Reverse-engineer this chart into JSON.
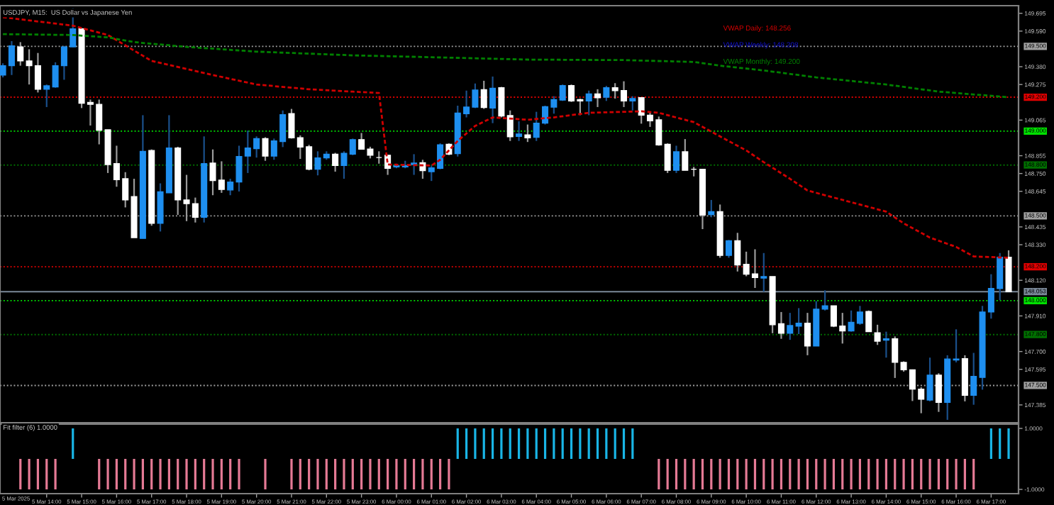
{
  "chart_data": [
    {
      "type": "candlestick",
      "title": "USDJPY, M15:  US Dollar vs Japanese Yen",
      "x": [
        "2025-03-05T12:45",
        "2025-03-05T13:00",
        "2025-03-05T13:15",
        "2025-03-05T13:30",
        "2025-03-05T13:45",
        "2025-03-05T14:00",
        "2025-03-05T14:15",
        "2025-03-05T14:30",
        "2025-03-05T14:45",
        "2025-03-05T15:00",
        "2025-03-05T15:15",
        "2025-03-05T15:30",
        "2025-03-05T15:45",
        "2025-03-05T16:00",
        "2025-03-05T16:15",
        "2025-03-05T16:30",
        "2025-03-05T16:45",
        "2025-03-05T17:00",
        "2025-03-05T17:15",
        "2025-03-05T17:30",
        "2025-03-05T17:45",
        "2025-03-05T18:00",
        "2025-03-05T18:15",
        "2025-03-05T18:30",
        "2025-03-05T18:45",
        "2025-03-05T19:00",
        "2025-03-05T19:15",
        "2025-03-05T19:30",
        "2025-03-05T19:45",
        "2025-03-05T20:00",
        "2025-03-05T20:15",
        "2025-03-05T20:30",
        "2025-03-05T20:45",
        "2025-03-05T21:00",
        "2025-03-05T21:15",
        "2025-03-05T21:30",
        "2025-03-05T21:45",
        "2025-03-05T22:00",
        "2025-03-05T22:15",
        "2025-03-05T22:30",
        "2025-03-05T22:45",
        "2025-03-05T23:00",
        "2025-03-05T23:15",
        "2025-03-05T23:30",
        "2025-03-05T23:45",
        "2025-03-06T00:00",
        "2025-03-06T00:15",
        "2025-03-06T00:30",
        "2025-03-06T00:45",
        "2025-03-06T01:00",
        "2025-03-06T01:15",
        "2025-03-06T01:30",
        "2025-03-06T01:45",
        "2025-03-06T02:00",
        "2025-03-06T02:15",
        "2025-03-06T02:30",
        "2025-03-06T02:45",
        "2025-03-06T03:00",
        "2025-03-06T03:15",
        "2025-03-06T03:30",
        "2025-03-06T03:45",
        "2025-03-06T04:00",
        "2025-03-06T04:15",
        "2025-03-06T04:30",
        "2025-03-06T04:45",
        "2025-03-06T05:00",
        "2025-03-06T05:15",
        "2025-03-06T05:30",
        "2025-03-06T05:45",
        "2025-03-06T06:00",
        "2025-03-06T06:15",
        "2025-03-06T06:30",
        "2025-03-06T06:45",
        "2025-03-06T07:00",
        "2025-03-06T07:15",
        "2025-03-06T07:30",
        "2025-03-06T07:45",
        "2025-03-06T08:00",
        "2025-03-06T08:15",
        "2025-03-06T08:30",
        "2025-03-06T08:45",
        "2025-03-06T09:00",
        "2025-03-06T09:15",
        "2025-03-06T09:30",
        "2025-03-06T09:45",
        "2025-03-06T10:00",
        "2025-03-06T10:15",
        "2025-03-06T10:30",
        "2025-03-06T10:45",
        "2025-03-06T11:00",
        "2025-03-06T11:15",
        "2025-03-06T11:30",
        "2025-03-06T11:45",
        "2025-03-06T12:00",
        "2025-03-06T12:15",
        "2025-03-06T12:30",
        "2025-03-06T12:45",
        "2025-03-06T13:00",
        "2025-03-06T13:15",
        "2025-03-06T13:30",
        "2025-03-06T13:45",
        "2025-03-06T14:00",
        "2025-03-06T14:15",
        "2025-03-06T14:30",
        "2025-03-06T14:45",
        "2025-03-06T15:00",
        "2025-03-06T15:15",
        "2025-03-06T15:30",
        "2025-03-06T15:45",
        "2025-03-06T16:00",
        "2025-03-06T16:15",
        "2025-03-06T16:30",
        "2025-03-06T16:45",
        "2025-03-06T17:00",
        "2025-03-06T17:15",
        "2025-03-06T17:30"
      ],
      "ohlc": [
        [
          149.331,
          149.4,
          149.317,
          149.386
        ],
        [
          149.386,
          149.531,
          149.331,
          149.503
        ],
        [
          149.497,
          149.525,
          149.386,
          149.414
        ],
        [
          149.414,
          149.483,
          149.275,
          149.386
        ],
        [
          149.386,
          149.461,
          149.228,
          149.247
        ],
        [
          149.247,
          149.275,
          149.142,
          149.267
        ],
        [
          149.261,
          149.406,
          149.256,
          149.386
        ],
        [
          149.386,
          149.503,
          149.303,
          149.497
        ],
        [
          149.497,
          149.725,
          149.497,
          149.603
        ],
        [
          149.603,
          149.608,
          149.136,
          149.164
        ],
        [
          149.169,
          149.186,
          149.033,
          149.158
        ],
        [
          149.158,
          149.186,
          148.922,
          149.006
        ],
        [
          149.008,
          149.008,
          148.753,
          148.803
        ],
        [
          148.808,
          148.914,
          148.672,
          148.714
        ],
        [
          148.719,
          148.758,
          148.55,
          148.594
        ],
        [
          148.614,
          148.719,
          148.372,
          148.372
        ],
        [
          148.367,
          149.094,
          148.367,
          148.881
        ],
        [
          148.886,
          148.892,
          148.442,
          148.456
        ],
        [
          148.456,
          148.692,
          148.408,
          148.642
        ],
        [
          148.636,
          149.094,
          148.636,
          148.9
        ],
        [
          148.9,
          148.908,
          148.506,
          148.594
        ],
        [
          148.594,
          148.742,
          148.469,
          148.572
        ],
        [
          148.572,
          148.608,
          148.461,
          148.492
        ],
        [
          148.492,
          148.969,
          148.461,
          148.808
        ],
        [
          148.811,
          148.892,
          148.622,
          148.708
        ],
        [
          148.711,
          148.822,
          148.636,
          148.656
        ],
        [
          148.653,
          148.719,
          148.622,
          148.7
        ],
        [
          148.7,
          148.914,
          148.644,
          148.85
        ],
        [
          148.853,
          149.003,
          148.753,
          148.9
        ],
        [
          148.897,
          148.969,
          148.844,
          148.956
        ],
        [
          148.956,
          148.964,
          148.825,
          148.853
        ],
        [
          148.853,
          148.956,
          148.831,
          148.942
        ],
        [
          148.939,
          149.122,
          148.906,
          149.097
        ],
        [
          149.103,
          149.131,
          148.956,
          148.961
        ],
        [
          148.961,
          148.975,
          148.836,
          148.906
        ],
        [
          148.908,
          148.919,
          148.769,
          148.775
        ],
        [
          148.775,
          148.881,
          148.739,
          148.842
        ],
        [
          148.842,
          148.881,
          148.831,
          148.864
        ],
        [
          148.864,
          148.872,
          148.761,
          148.797
        ],
        [
          148.797,
          148.881,
          148.719,
          148.869
        ],
        [
          148.864,
          148.956,
          148.858,
          148.95
        ],
        [
          148.95,
          148.989,
          148.892,
          148.894
        ],
        [
          148.894,
          148.908,
          148.839,
          148.858
        ],
        [
          148.844,
          148.881,
          148.808,
          148.844
        ],
        [
          148.858,
          148.858,
          148.742,
          148.781
        ],
        [
          148.789,
          148.808,
          148.781,
          148.797
        ],
        [
          148.789,
          148.825,
          148.781,
          148.797
        ],
        [
          148.803,
          148.864,
          148.742,
          148.811
        ],
        [
          148.814,
          148.831,
          148.719,
          148.767
        ],
        [
          148.761,
          148.797,
          148.706,
          148.783
        ],
        [
          148.781,
          148.928,
          148.775,
          148.919
        ],
        [
          148.922,
          148.928,
          148.858,
          148.864
        ],
        [
          148.867,
          149.15,
          148.85,
          149.106
        ],
        [
          149.103,
          149.239,
          149.081,
          149.142
        ],
        [
          149.142,
          149.281,
          149.136,
          149.242
        ],
        [
          149.244,
          149.297,
          149.131,
          149.139
        ],
        [
          149.136,
          149.322,
          149.047,
          149.253
        ],
        [
          149.256,
          149.261,
          149.081,
          149.089
        ],
        [
          149.092,
          149.122,
          148.942,
          148.967
        ],
        [
          148.969,
          149.058,
          148.942,
          148.983
        ],
        [
          148.978,
          149.039,
          148.936,
          148.961
        ],
        [
          148.964,
          149.114,
          148.942,
          149.047
        ],
        [
          149.047,
          149.15,
          149.039,
          149.144
        ],
        [
          149.142,
          149.206,
          149.103,
          149.186
        ],
        [
          149.183,
          149.275,
          149.178,
          149.269
        ],
        [
          149.269,
          149.275,
          149.172,
          149.178
        ],
        [
          149.186,
          149.192,
          149.094,
          149.178
        ],
        [
          149.178,
          149.239,
          149.094,
          149.219
        ],
        [
          149.219,
          149.247,
          149.142,
          149.197
        ],
        [
          149.2,
          149.267,
          149.178,
          149.256
        ],
        [
          149.256,
          149.283,
          149.192,
          149.239
        ],
        [
          149.239,
          149.294,
          149.142,
          149.178
        ],
        [
          149.178,
          149.206,
          149.122,
          149.192
        ],
        [
          149.197,
          149.197,
          149.044,
          149.094
        ],
        [
          149.094,
          149.114,
          149.025,
          149.061
        ],
        [
          149.067,
          149.086,
          148.914,
          148.919
        ],
        [
          148.922,
          148.928,
          148.753,
          148.769
        ],
        [
          148.769,
          148.914,
          148.753,
          148.878
        ],
        [
          148.878,
          148.953,
          148.769,
          148.769
        ],
        [
          148.775,
          148.789,
          148.733,
          148.775
        ],
        [
          148.775,
          148.775,
          148.422,
          148.506
        ],
        [
          148.508,
          148.594,
          148.492,
          148.525
        ],
        [
          148.525,
          148.567,
          148.253,
          148.267
        ],
        [
          148.267,
          148.358,
          148.253,
          148.353
        ],
        [
          148.353,
          148.4,
          148.172,
          148.211
        ],
        [
          148.214,
          148.289,
          148.144,
          148.156
        ],
        [
          148.158,
          148.303,
          148.075,
          148.136
        ],
        [
          148.133,
          148.281,
          148.053,
          148.142
        ],
        [
          148.142,
          148.142,
          147.808,
          147.858
        ],
        [
          147.864,
          147.933,
          147.775,
          147.808
        ],
        [
          147.808,
          147.928,
          147.769,
          147.853
        ],
        [
          147.85,
          147.956,
          147.803,
          147.867
        ],
        [
          147.867,
          147.928,
          147.678,
          147.733
        ],
        [
          147.733,
          147.997,
          147.733,
          147.95
        ],
        [
          147.95,
          148.061,
          147.942,
          147.969
        ],
        [
          147.969,
          147.969,
          147.844,
          147.85
        ],
        [
          147.85,
          147.928,
          147.747,
          147.822
        ],
        [
          147.822,
          147.942,
          147.817,
          147.872
        ],
        [
          147.867,
          147.969,
          147.858,
          147.933
        ],
        [
          147.936,
          147.942,
          147.817,
          147.817
        ],
        [
          147.811,
          147.858,
          147.739,
          147.761
        ],
        [
          147.767,
          147.817,
          147.664,
          147.775
        ],
        [
          147.775,
          147.789,
          147.544,
          147.636
        ],
        [
          147.636,
          147.642,
          147.581,
          147.592
        ],
        [
          147.592,
          147.594,
          147.408,
          147.478
        ],
        [
          147.478,
          147.489,
          147.336,
          147.419
        ],
        [
          147.414,
          147.664,
          147.406,
          147.561
        ],
        [
          147.561,
          147.572,
          147.344,
          147.4
        ],
        [
          147.4,
          147.678,
          147.297,
          147.656
        ],
        [
          147.65,
          147.831,
          147.636,
          147.656
        ],
        [
          147.658,
          147.678,
          147.406,
          147.442
        ],
        [
          147.442,
          147.692,
          147.386,
          147.553
        ],
        [
          147.547,
          147.969,
          147.475,
          147.933
        ],
        [
          147.933,
          148.156,
          147.894,
          148.072
        ],
        [
          148.072,
          148.281,
          148.003,
          148.256
        ],
        [
          148.256,
          148.297,
          148.053,
          148.053
        ]
      ],
      "series": [
        {
          "type": "line",
          "name": "VWAP Daily: 148.256",
          "color": "#d00000",
          "line_style": "dashed",
          "x": [
            "2025-03-05T12:45",
            "2025-03-05T14:45",
            "2025-03-05T15:45",
            "2025-03-05T17:00",
            "2025-03-05T18:45",
            "2025-03-05T20:00",
            "2025-03-05T21:30",
            "2025-03-05T22:45",
            "2025-03-05T23:30",
            "2025-03-05T23:45",
            "2025-03-06T01:00",
            "2025-03-06T01:15",
            "2025-03-06T01:45",
            "2025-03-06T02:15",
            "2025-03-06T02:45",
            "2025-03-06T03:45",
            "2025-03-06T04:30",
            "2025-03-06T05:30",
            "2025-03-06T07:00",
            "2025-03-06T07:30",
            "2025-03-06T08:30",
            "2025-03-06T09:15",
            "2025-03-06T10:00",
            "2025-03-06T10:30",
            "2025-03-06T11:15",
            "2025-03-06T11:45",
            "2025-03-06T12:30",
            "2025-03-06T13:15",
            "2025-03-06T14:00",
            "2025-03-06T14:30",
            "2025-03-06T15:15",
            "2025-03-06T16:00",
            "2025-03-06T16:30",
            "2025-03-06T17:30"
          ],
          "values": [
            149.672,
            149.622,
            149.567,
            149.414,
            149.331,
            149.275,
            149.247,
            149.233,
            149.225,
            148.803,
            148.797,
            148.831,
            148.942,
            149.031,
            149.081,
            149.067,
            149.081,
            149.108,
            149.117,
            149.108,
            149.053,
            148.969,
            148.886,
            148.817,
            148.719,
            148.65,
            148.608,
            148.567,
            148.525,
            148.456,
            148.372,
            148.317,
            148.261,
            148.253
          ]
        },
        {
          "type": "line",
          "name": "VWAP Monthly: 149.200",
          "color": "#008000",
          "line_style": "dashed",
          "x": [
            "2025-03-05T12:45",
            "2025-03-05T14:45",
            "2025-03-05T15:45",
            "2025-03-05T16:30",
            "2025-03-05T18:00",
            "2025-03-05T20:00",
            "2025-03-05T22:45",
            "2025-03-06T01:00",
            "2025-03-06T03:45",
            "2025-03-06T06:30",
            "2025-03-06T08:30",
            "2025-03-06T09:15",
            "2025-03-06T10:30",
            "2025-03-06T12:00",
            "2025-03-06T14:00",
            "2025-03-06T15:30",
            "2025-03-06T17:30"
          ],
          "values": [
            149.572,
            149.567,
            149.553,
            149.525,
            149.497,
            149.469,
            149.447,
            149.436,
            149.422,
            149.419,
            149.408,
            149.386,
            149.358,
            149.317,
            149.275,
            149.233,
            149.2
          ]
        }
      ],
      "annotations": [
        "VWAP Weekly: 148.208"
      ],
      "ref_lines": [
        {
          "axis": "y",
          "value": 149.5,
          "label": "149.500",
          "color": "#a0a0a0",
          "line_style": "dotted"
        },
        {
          "axis": "y",
          "value": 149.2,
          "label": "149.200",
          "color": "#e00000",
          "line_style": "dotted"
        },
        {
          "axis": "y",
          "value": 149.0,
          "label": "149.000",
          "color": "#00e000",
          "line_style": "dotted"
        },
        {
          "axis": "y",
          "value": 148.8,
          "label": "148.800",
          "color": "#007000",
          "line_style": "dotted"
        },
        {
          "axis": "y",
          "value": 148.5,
          "label": "148.500",
          "color": "#a0a0a0",
          "line_style": "dotted"
        },
        {
          "axis": "y",
          "value": 148.2,
          "label": "148.200",
          "color": "#e00000",
          "line_style": "dotted"
        },
        {
          "axis": "y",
          "value": 148.0,
          "label": "148.000",
          "color": "#00e000",
          "line_style": "dotted"
        },
        {
          "axis": "y",
          "value": 147.8,
          "label": "147.800",
          "color": "#007000",
          "line_style": "dotted"
        },
        {
          "axis": "y",
          "value": 147.5,
          "label": "147.500",
          "color": "#a0a0a0",
          "line_style": "dotted"
        },
        {
          "axis": "y",
          "value": 148.053,
          "label": "148.053",
          "color": "#7a8898",
          "line_style": "solid"
        }
      ],
      "xlim": [
        "2025-03-05T12:40",
        "2025-03-06T17:47"
      ],
      "ylim": [
        147.28,
        149.74
      ],
      "yticks": [
        149.695,
        {
          "value": 149.59,
          "label": "149.590"
        },
        {
          "value": 149.38,
          "label": "149.380"
        },
        149.275,
        149.065,
        148.855,
        {
          "value": 148.75,
          "label": "148.750"
        },
        148.645,
        148.435,
        {
          "value": 148.33,
          "label": "148.330"
        },
        {
          "value": 148.12,
          "label": "148.120"
        },
        {
          "value": 147.91,
          "label": "147.910"
        },
        {
          "value": 147.7,
          "label": "147.700"
        },
        147.595,
        147.385
      ],
      "legend": "top right",
      "tick_labels": "y"
    },
    {
      "type": "bar",
      "title": "Fit filter (6) 1.0000",
      "x": [
        "2025-03-05T13:15",
        "2025-03-05T13:30",
        "2025-03-05T13:45",
        "2025-03-05T14:00",
        "2025-03-05T14:15",
        "2025-03-05T14:30",
        "2025-03-05T14:45",
        "2025-03-05T15:00",
        "2025-03-05T15:15",
        "2025-03-05T15:30",
        "2025-03-05T15:45",
        "2025-03-05T16:00",
        "2025-03-05T16:15",
        "2025-03-05T16:30",
        "2025-03-05T16:45",
        "2025-03-05T17:00",
        "2025-03-05T17:15",
        "2025-03-05T17:30",
        "2025-03-05T17:45",
        "2025-03-05T18:00",
        "2025-03-05T18:15",
        "2025-03-05T18:30",
        "2025-03-05T18:45",
        "2025-03-05T19:00",
        "2025-03-05T19:15",
        "2025-03-05T19:30",
        "2025-03-05T19:45",
        "2025-03-05T20:00",
        "2025-03-05T20:15",
        "2025-03-05T20:30",
        "2025-03-05T20:45",
        "2025-03-05T21:00",
        "2025-03-05T21:15",
        "2025-03-05T21:30",
        "2025-03-05T21:45",
        "2025-03-05T22:00",
        "2025-03-05T22:15",
        "2025-03-05T22:30",
        "2025-03-05T22:45",
        "2025-03-05T23:00",
        "2025-03-05T23:15",
        "2025-03-05T23:30",
        "2025-03-05T23:45",
        "2025-03-06T00:00",
        "2025-03-06T00:15",
        "2025-03-06T00:30",
        "2025-03-06T00:45",
        "2025-03-06T01:00",
        "2025-03-06T01:15",
        "2025-03-06T01:30",
        "2025-03-06T01:45",
        "2025-03-06T02:00",
        "2025-03-06T02:15",
        "2025-03-06T02:30",
        "2025-03-06T02:45",
        "2025-03-06T03:00",
        "2025-03-06T03:15",
        "2025-03-06T03:30",
        "2025-03-06T03:45",
        "2025-03-06T04:00",
        "2025-03-06T04:15",
        "2025-03-06T04:30",
        "2025-03-06T04:45",
        "2025-03-06T05:00",
        "2025-03-06T05:15",
        "2025-03-06T05:30",
        "2025-03-06T05:45",
        "2025-03-06T06:00",
        "2025-03-06T06:15",
        "2025-03-06T06:30",
        "2025-03-06T06:45",
        "2025-03-06T07:00",
        "2025-03-06T07:15",
        "2025-03-06T07:30",
        "2025-03-06T07:45",
        "2025-03-06T08:00",
        "2025-03-06T08:15",
        "2025-03-06T08:30",
        "2025-03-06T08:45",
        "2025-03-06T09:00",
        "2025-03-06T09:15",
        "2025-03-06T09:30",
        "2025-03-06T09:45",
        "2025-03-06T10:00",
        "2025-03-06T10:15",
        "2025-03-06T10:30",
        "2025-03-06T10:45",
        "2025-03-06T11:00",
        "2025-03-06T11:15",
        "2025-03-06T11:30",
        "2025-03-06T11:45",
        "2025-03-06T12:00",
        "2025-03-06T12:15",
        "2025-03-06T12:30",
        "2025-03-06T12:45",
        "2025-03-06T13:00",
        "2025-03-06T13:15",
        "2025-03-06T13:30",
        "2025-03-06T13:45",
        "2025-03-06T14:00",
        "2025-03-06T14:15",
        "2025-03-06T14:30",
        "2025-03-06T14:45",
        "2025-03-06T15:00",
        "2025-03-06T15:15",
        "2025-03-06T15:30",
        "2025-03-06T15:45",
        "2025-03-06T16:00",
        "2025-03-06T16:15",
        "2025-03-06T16:30",
        "2025-03-06T16:45",
        "2025-03-06T17:00",
        "2025-03-06T17:15",
        "2025-03-06T17:30"
      ],
      "values": [
        -1,
        -1,
        -1,
        -1,
        -1,
        null,
        1,
        null,
        null,
        -1,
        -1,
        -1,
        -1,
        -1,
        -1,
        -1,
        -1,
        -1,
        -1,
        -1,
        -1,
        -1,
        -1,
        -1,
        -1,
        -1,
        null,
        null,
        -1,
        null,
        null,
        -1,
        -1,
        -1,
        -1,
        -1,
        -1,
        -1,
        -1,
        -1,
        -1,
        -1,
        -1,
        -1,
        -1,
        -1,
        -1,
        -1,
        -1,
        -1,
        1,
        1,
        1,
        1,
        1,
        1,
        1,
        1,
        1,
        1,
        1,
        1,
        1,
        1,
        1,
        1,
        1,
        1,
        1,
        1,
        1,
        null,
        null,
        -1,
        -1,
        -1,
        -1,
        -1,
        -1,
        -1,
        -1,
        -1,
        -1,
        -1,
        -1,
        -1,
        -1,
        -1,
        -1,
        -1,
        -1,
        -1,
        -1,
        -1,
        -1,
        -1,
        -1,
        -1,
        -1,
        -1,
        -1,
        -1,
        -1,
        -1,
        -1,
        -1,
        -1,
        -1,
        -1,
        -1,
        null,
        1,
        1,
        1
      ],
      "colors": [
        "#e57a95",
        "#e57a95",
        "#e57a95",
        "#e57a95",
        "#e57a95",
        "#e57a95",
        "#19b5e6",
        "#e57a95",
        "#e57a95",
        "#e57a95",
        "#e57a95",
        "#e57a95",
        "#e57a95",
        "#e57a95",
        "#e57a95",
        "#e57a95",
        "#e57a95",
        "#e57a95",
        "#e57a95",
        "#e57a95",
        "#e57a95",
        "#e57a95",
        "#e57a95",
        "#e57a95",
        "#e57a95",
        "#e57a95",
        "#e57a95",
        "#e57a95",
        "#e57a95",
        "#e57a95",
        "#e57a95",
        "#e57a95",
        "#e57a95",
        "#e57a95",
        "#e57a95",
        "#e57a95",
        "#e57a95",
        "#e57a95",
        "#e57a95",
        "#e57a95",
        "#e57a95",
        "#e57a95",
        "#e57a95",
        "#e57a95",
        "#e57a95",
        "#e57a95",
        "#e57a95",
        "#e57a95",
        "#e57a95",
        "#e57a95",
        "#19b5e6",
        "#19b5e6",
        "#19b5e6",
        "#19b5e6",
        "#19b5e6",
        "#19b5e6",
        "#19b5e6",
        "#19b5e6",
        "#19b5e6",
        "#19b5e6",
        "#19b5e6",
        "#19b5e6",
        "#19b5e6",
        "#19b5e6",
        "#19b5e6",
        "#19b5e6",
        "#19b5e6",
        "#19b5e6",
        "#19b5e6",
        "#19b5e6",
        "#19b5e6",
        "#e57a95",
        "#e57a95",
        "#e57a95",
        "#e57a95",
        "#e57a95",
        "#e57a95",
        "#e57a95",
        "#e57a95",
        "#e57a95",
        "#e57a95",
        "#e57a95",
        "#e57a95",
        "#e57a95",
        "#e57a95",
        "#e57a95",
        "#e57a95",
        "#e57a95",
        "#e57a95",
        "#e57a95",
        "#e57a95",
        "#e57a95",
        "#e57a95",
        "#e57a95",
        "#e57a95",
        "#e57a95",
        "#e57a95",
        "#e57a95",
        "#e57a95",
        "#e57a95",
        "#e57a95",
        "#e57a95",
        "#e57a95",
        "#e57a95",
        "#e57a95",
        "#e57a95",
        "#e57a95",
        "#e57a95",
        "#e57a95",
        "#e57a95",
        "#19b5e6",
        "#19b5e6",
        "#19b5e6",
        "#19b5e6"
      ],
      "xlim": [
        "2025-03-05T12:40",
        "2025-03-06T17:47"
      ],
      "ylim": [
        -1.14,
        1.14
      ],
      "yticks": [
        {
          "value": 1,
          "label": "1.0000"
        },
        {
          "value": -1,
          "label": "-1.0000"
        }
      ],
      "annotations": [
        "5 Mar 2025"
      ],
      "xticks": [
        {
          "value": "2025-03-05T14:00",
          "label": "5 Mar 14:00"
        },
        {
          "value": "2025-03-05T15:00",
          "label": "5 Mar 15:00"
        },
        {
          "value": "2025-03-05T16:00",
          "label": "5 Mar 16:00"
        },
        {
          "value": "2025-03-05T17:00",
          "label": "5 Mar 17:00"
        },
        {
          "value": "2025-03-05T18:00",
          "label": "5 Mar 18:00"
        },
        {
          "value": "2025-03-05T19:00",
          "label": "5 Mar 19:00"
        },
        {
          "value": "2025-03-05T20:00",
          "label": "5 Mar 20:00"
        },
        {
          "value": "2025-03-05T21:00",
          "label": "5 Mar 21:00"
        },
        {
          "value": "2025-03-05T22:00",
          "label": "5 Mar 22:00"
        },
        {
          "value": "2025-03-05T23:00",
          "label": "5 Mar 23:00"
        },
        {
          "value": "2025-03-06T00:00",
          "label": "6 Mar 00:00"
        },
        {
          "value": "2025-03-06T01:00",
          "label": "6 Mar 01:00"
        },
        {
          "value": "2025-03-06T02:00",
          "label": "6 Mar 02:00"
        },
        {
          "value": "2025-03-06T03:00",
          "label": "6 Mar 03:00"
        },
        {
          "value": "2025-03-06T04:00",
          "label": "6 Mar 04:00"
        },
        {
          "value": "2025-03-06T05:00",
          "label": "6 Mar 05:00"
        },
        {
          "value": "2025-03-06T06:00",
          "label": "6 Mar 06:00"
        },
        {
          "value": "2025-03-06T07:00",
          "label": "6 Mar 07:00"
        },
        {
          "value": "2025-03-06T08:00",
          "label": "6 Mar 08:00"
        },
        {
          "value": "2025-03-06T09:00",
          "label": "6 Mar 09:00"
        },
        {
          "value": "2025-03-06T10:00",
          "label": "6 Mar 10:00"
        },
        {
          "value": "2025-03-06T11:00",
          "label": "6 Mar 11:00"
        },
        {
          "value": "2025-03-06T12:00",
          "label": "6 Mar 12:00"
        },
        {
          "value": "2025-03-06T13:00",
          "label": "6 Mar 13:00"
        },
        {
          "value": "2025-03-06T14:00",
          "label": "6 Mar 14:00"
        },
        {
          "value": "2025-03-06T15:00",
          "label": "6 Mar 15:00"
        },
        {
          "value": "2025-03-06T16:00",
          "label": "6 Mar 16:00"
        },
        {
          "value": "2025-03-06T17:00",
          "label": "6 Mar 17:00"
        }
      ]
    }
  ]
}
